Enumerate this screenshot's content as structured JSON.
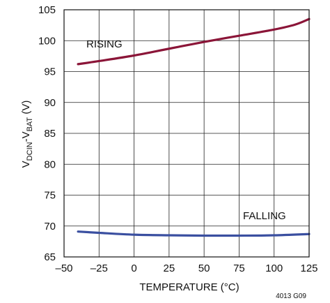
{
  "chart_data": {
    "type": "line",
    "xlabel": "TEMPERATURE (°C)",
    "ylabel": {
      "prefix": "V",
      "sub1": "DCIN",
      "mid": "-V",
      "sub2": "BAT",
      "suffix": " (V)"
    },
    "xlim": [
      -50,
      125
    ],
    "ylim": [
      65,
      105
    ],
    "x_ticks": [
      -50,
      -25,
      0,
      25,
      50,
      75,
      100,
      125
    ],
    "x_tick_labels": [
      "–50",
      "–25",
      "0",
      "25",
      "50",
      "75",
      "100",
      "125"
    ],
    "y_ticks": [
      65,
      70,
      75,
      80,
      85,
      90,
      95,
      100,
      105
    ],
    "y_tick_labels": [
      "65",
      "70",
      "75",
      "80",
      "85",
      "90",
      "95",
      "100",
      "105"
    ],
    "grid": true,
    "series": [
      {
        "name": "RISING",
        "color": "#8b1538",
        "x": [
          -40,
          -25,
          0,
          25,
          50,
          75,
          100,
          115,
          125
        ],
        "y": [
          96.2,
          96.7,
          97.6,
          98.7,
          99.8,
          100.8,
          101.8,
          102.6,
          103.5
        ]
      },
      {
        "name": "FALLING",
        "color": "#3a4fa0",
        "x": [
          -40,
          -25,
          0,
          25,
          50,
          75,
          100,
          125
        ],
        "y": [
          69.1,
          68.9,
          68.6,
          68.5,
          68.45,
          68.45,
          68.5,
          68.7
        ]
      }
    ],
    "annotation": "4013 G09"
  }
}
